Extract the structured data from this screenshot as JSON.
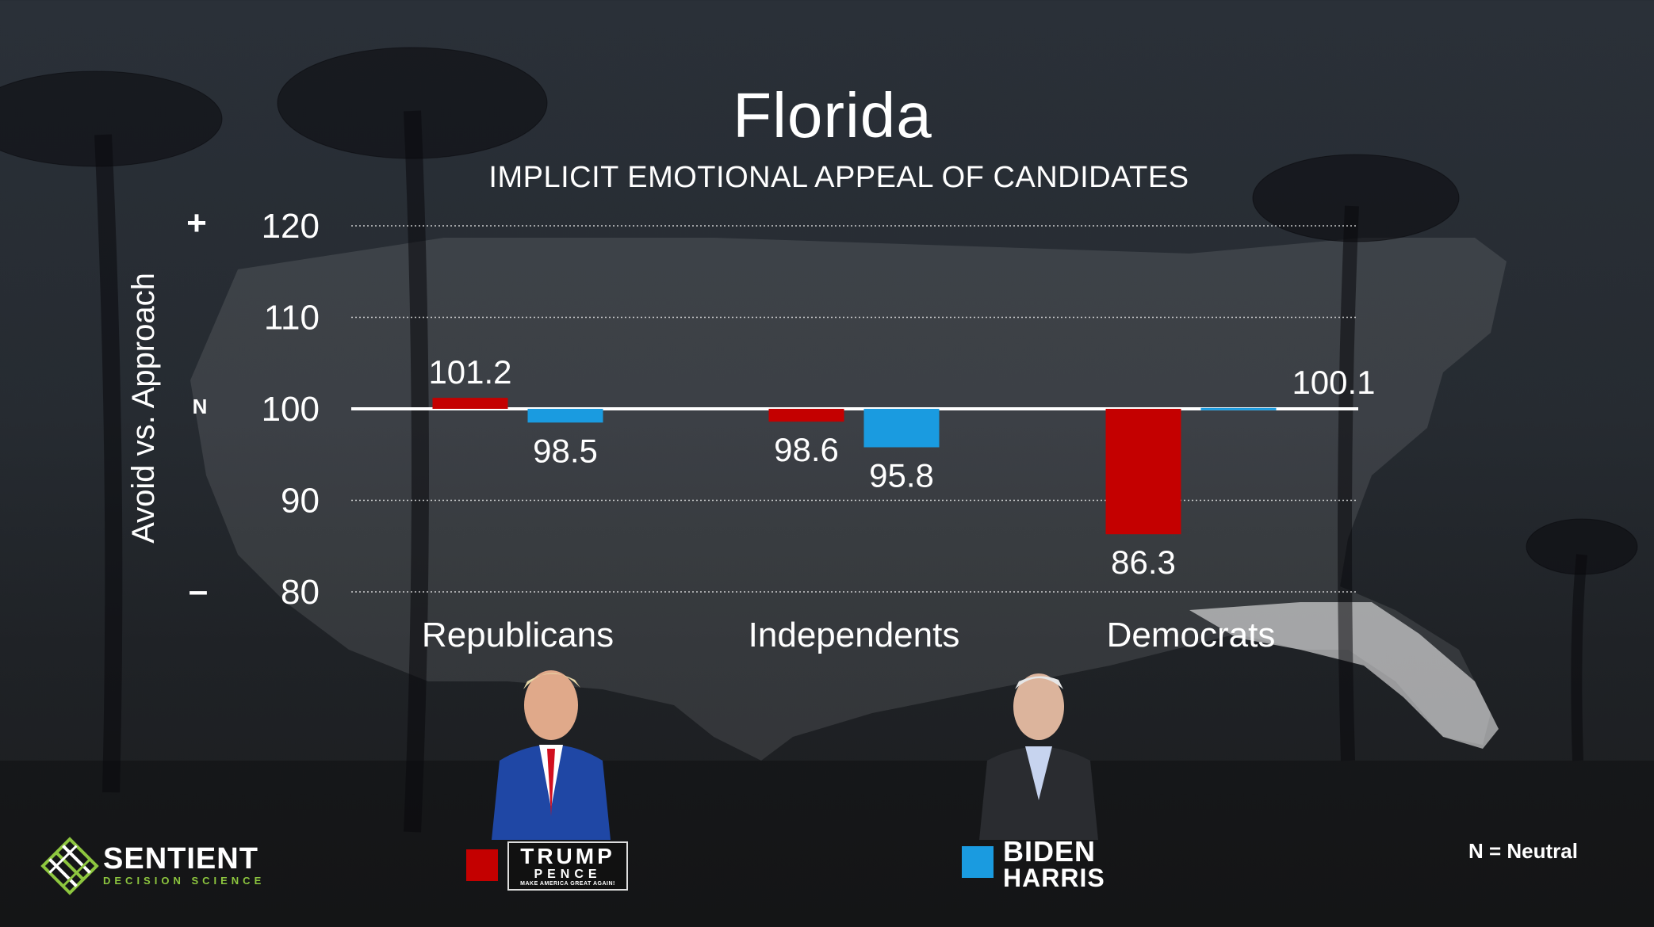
{
  "title": "Florida",
  "subtitle": "IMPLICIT EMOTIONAL APPEAL OF CANDIDATES",
  "colors": {
    "trump": "#c40000",
    "biden": "#1a9be0",
    "accent_green": "#8dc63f"
  },
  "chart_data": {
    "type": "bar",
    "categories": [
      "Republicans",
      "Independents",
      "Democrats"
    ],
    "baseline": 100,
    "series": [
      {
        "values": [
          101.2,
          98.6,
          86.3
        ]
      },
      {
        "values": [
          98.5,
          95.8,
          100.1
        ]
      }
    ],
    "ylabel": "Avoid vs. Approach",
    "ylim": [
      80,
      120
    ],
    "yticks": [
      120,
      110,
      100,
      90,
      80
    ],
    "tick_labels": [
      "120",
      "110",
      "100",
      "90",
      "80"
    ],
    "value_labels": [
      [
        "101.2",
        "98.6",
        "86.3"
      ],
      [
        "98.5",
        "95.8",
        "100.1"
      ]
    ],
    "axis_symbols": {
      "top": "+",
      "neutral": "N",
      "bottom": "–"
    },
    "grid": true
  },
  "legend": {
    "trump": {
      "line1": "TRUMP",
      "line2": "PENCE",
      "line3": "MAKE AMERICA GREAT AGAIN!"
    },
    "biden": {
      "line1": "BIDEN",
      "line2": "HARRIS"
    }
  },
  "note": "N = Neutral",
  "brand": {
    "name": "SENTIENT",
    "tagline": "DECISION SCIENCE"
  },
  "icons": [
    "palm-tree-icon",
    "us-map-icon",
    "trump-photo",
    "biden-photo",
    "sentient-logo-icon"
  ]
}
